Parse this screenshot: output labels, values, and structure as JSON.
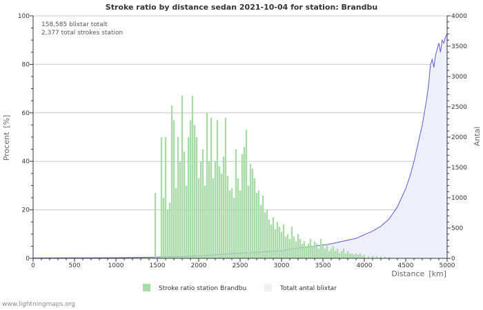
{
  "chart_data": {
    "type": "bar+area",
    "title": "Stroke ratio by distance sedan 2021-10-04 for station: Brandbu",
    "info_lines": [
      "158,585 blixtar totalt",
      "2,377 total strokes station"
    ],
    "xlabel": "Distance",
    "xunit": "[km]",
    "ylabel_left": "Procent",
    "ylabel_left_unit": "[%]",
    "ylabel_right": "Antal",
    "xlim": [
      0,
      5000
    ],
    "ylim_left": [
      0,
      100
    ],
    "ylim_right": [
      0,
      4000
    ],
    "x_ticks": [
      "0",
      "500",
      "1000",
      "1500",
      "2000",
      "2500",
      "3000",
      "3500",
      "4000",
      "4500",
      "5000"
    ],
    "y_ticks_left": [
      "0",
      "20",
      "40",
      "60",
      "80",
      "100"
    ],
    "y_ticks_right": [
      "0",
      "500",
      "1000",
      "1500",
      "2000",
      "2500",
      "3000",
      "3500",
      "4000"
    ],
    "bin_width_km": 25,
    "series": [
      {
        "name": "Stroke ratio station Brandbu",
        "axis": "left",
        "style": "bar",
        "color": "#a8dba8",
        "points": [
          [
            1475,
            27
          ],
          [
            1550,
            50
          ],
          [
            1575,
            25
          ],
          [
            1600,
            50
          ],
          [
            1625,
            20
          ],
          [
            1650,
            23
          ],
          [
            1675,
            63
          ],
          [
            1700,
            57
          ],
          [
            1725,
            29
          ],
          [
            1750,
            50
          ],
          [
            1775,
            40
          ],
          [
            1800,
            67
          ],
          [
            1825,
            44
          ],
          [
            1850,
            30
          ],
          [
            1875,
            50
          ],
          [
            1900,
            57
          ],
          [
            1925,
            67
          ],
          [
            1950,
            55
          ],
          [
            1975,
            50
          ],
          [
            2000,
            33
          ],
          [
            2025,
            40
          ],
          [
            2050,
            45
          ],
          [
            2075,
            30
          ],
          [
            2100,
            60
          ],
          [
            2125,
            40
          ],
          [
            2150,
            58
          ],
          [
            2175,
            33
          ],
          [
            2200,
            40
          ],
          [
            2225,
            57
          ],
          [
            2250,
            38
          ],
          [
            2275,
            35
          ],
          [
            2300,
            42
          ],
          [
            2325,
            58
          ],
          [
            2350,
            34
          ],
          [
            2375,
            28
          ],
          [
            2400,
            29
          ],
          [
            2425,
            25
          ],
          [
            2450,
            45
          ],
          [
            2475,
            33
          ],
          [
            2500,
            28
          ],
          [
            2525,
            43
          ],
          [
            2550,
            46
          ],
          [
            2575,
            53
          ],
          [
            2600,
            30
          ],
          [
            2625,
            39
          ],
          [
            2650,
            37
          ],
          [
            2675,
            33
          ],
          [
            2700,
            27
          ],
          [
            2725,
            28
          ],
          [
            2750,
            22
          ],
          [
            2775,
            26
          ],
          [
            2800,
            19
          ],
          [
            2825,
            20
          ],
          [
            2850,
            16
          ],
          [
            2875,
            14
          ],
          [
            2900,
            17
          ],
          [
            2925,
            12
          ],
          [
            2950,
            15
          ],
          [
            2975,
            13
          ],
          [
            3000,
            11
          ],
          [
            3025,
            14
          ],
          [
            3050,
            9
          ],
          [
            3075,
            10
          ],
          [
            3100,
            8
          ],
          [
            3125,
            13
          ],
          [
            3150,
            9
          ],
          [
            3175,
            7
          ],
          [
            3200,
            10
          ],
          [
            3225,
            8
          ],
          [
            3250,
            6
          ],
          [
            3275,
            7
          ],
          [
            3300,
            5
          ],
          [
            3325,
            6
          ],
          [
            3350,
            8
          ],
          [
            3375,
            5
          ],
          [
            3400,
            7
          ],
          [
            3425,
            6
          ],
          [
            3450,
            4
          ],
          [
            3475,
            8
          ],
          [
            3500,
            5
          ],
          [
            3525,
            4
          ],
          [
            3550,
            6
          ],
          [
            3575,
            3
          ],
          [
            3600,
            4
          ],
          [
            3625,
            5
          ],
          [
            3650,
            3
          ],
          [
            3675,
            4
          ],
          [
            3700,
            2
          ],
          [
            3725,
            3
          ],
          [
            3750,
            4
          ],
          [
            3775,
            2
          ],
          [
            3800,
            3
          ],
          [
            3825,
            2
          ],
          [
            3850,
            2
          ],
          [
            3875,
            1.5
          ],
          [
            3900,
            2
          ],
          [
            3925,
            1.5
          ],
          [
            3950,
            2
          ],
          [
            3975,
            1
          ],
          [
            4000,
            1.5
          ],
          [
            4050,
            1
          ],
          [
            4100,
            1
          ],
          [
            4150,
            1
          ],
          [
            4200,
            0.8
          ],
          [
            4250,
            0.7
          ],
          [
            4300,
            0.5
          ]
        ]
      },
      {
        "name": "Totalt antal blixtar",
        "axis": "right",
        "style": "area",
        "color": "#5a5acd",
        "fill": "#efeffa",
        "points": [
          [
            0,
            5
          ],
          [
            500,
            8
          ],
          [
            1000,
            10
          ],
          [
            1500,
            20
          ],
          [
            1600,
            25
          ],
          [
            1800,
            30
          ],
          [
            2000,
            40
          ],
          [
            2200,
            60
          ],
          [
            2400,
            80
          ],
          [
            2600,
            90
          ],
          [
            2800,
            110
          ],
          [
            3000,
            130
          ],
          [
            3200,
            170
          ],
          [
            3400,
            200
          ],
          [
            3500,
            220
          ],
          [
            3600,
            240
          ],
          [
            3700,
            270
          ],
          [
            3800,
            300
          ],
          [
            3900,
            330
          ],
          [
            4000,
            390
          ],
          [
            4100,
            450
          ],
          [
            4200,
            530
          ],
          [
            4300,
            650
          ],
          [
            4400,
            850
          ],
          [
            4500,
            1150
          ],
          [
            4550,
            1350
          ],
          [
            4600,
            1600
          ],
          [
            4650,
            1900
          ],
          [
            4700,
            2200
          ],
          [
            4750,
            2600
          ],
          [
            4775,
            2850
          ],
          [
            4800,
            3200
          ],
          [
            4820,
            3280
          ],
          [
            4840,
            3150
          ],
          [
            4860,
            3350
          ],
          [
            4880,
            3450
          ],
          [
            4900,
            3550
          ],
          [
            4920,
            3400
          ],
          [
            4940,
            3600
          ],
          [
            4960,
            3550
          ],
          [
            4980,
            3650
          ],
          [
            5000,
            3700
          ]
        ]
      }
    ],
    "footer": "www.lightningmaps.org"
  }
}
